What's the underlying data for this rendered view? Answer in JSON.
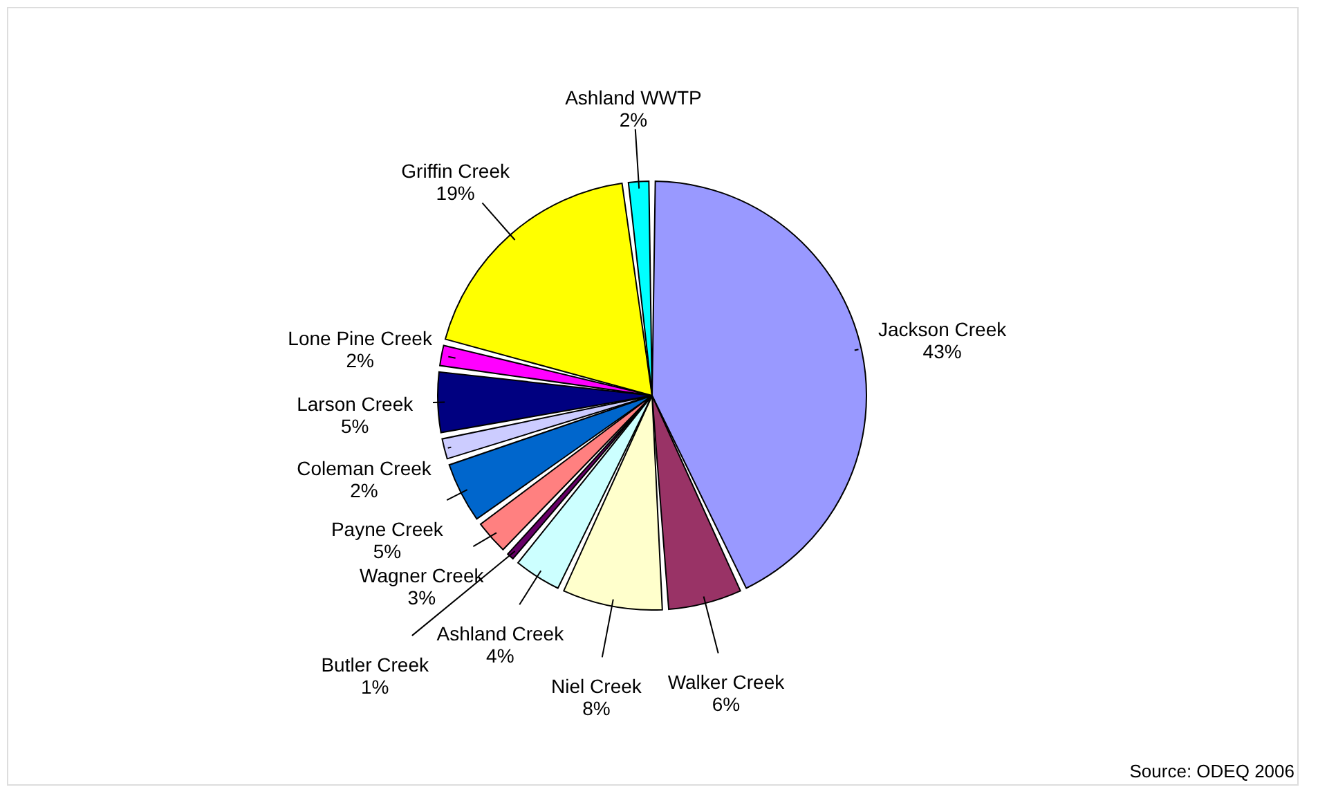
{
  "chart_data": {
    "type": "pie",
    "categories": [
      "Jackson Creek",
      "Walker Creek",
      "Niel Creek",
      "Ashland Creek",
      "Butler Creek",
      "Wagner Creek",
      "Payne Creek",
      "Coleman Creek",
      "Larson Creek",
      "Lone Pine Creek",
      "Griffin Creek",
      "Ashland WWTP"
    ],
    "values": [
      43,
      6,
      8,
      4,
      1,
      3,
      5,
      2,
      5,
      2,
      19,
      2
    ],
    "value_labels": [
      "43%",
      "6%",
      "8%",
      "4%",
      "1%",
      "3%",
      "5%",
      "2%",
      "5%",
      "2%",
      "19%",
      "2%"
    ],
    "colors": [
      "#9999ff",
      "#993366",
      "#ffffcc",
      "#ccffff",
      "#660066",
      "#ff8080",
      "#0066cc",
      "#ccccff",
      "#000080",
      "#ff00ff",
      "#ffff00",
      "#00ffff"
    ],
    "legend": false,
    "annotations": [
      "Source: ODEQ 2006"
    ]
  }
}
